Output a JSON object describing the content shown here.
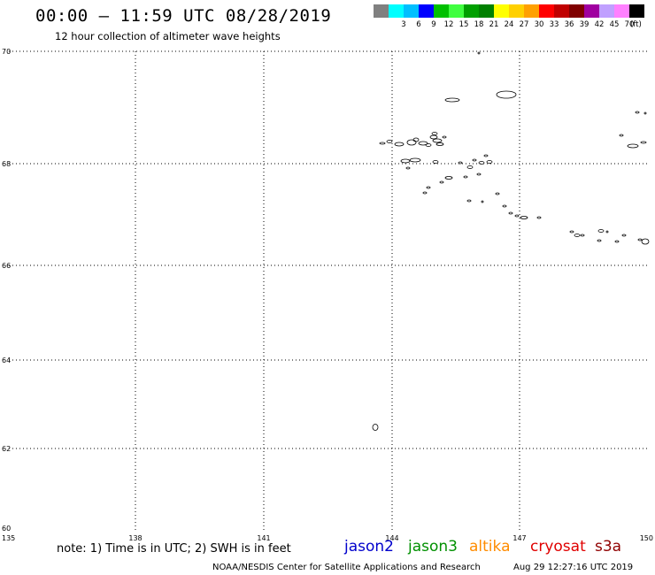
{
  "header": {
    "title": "00:00 – 11:59 UTC 08/28/2019",
    "subtitle": "12 hour collection of altimeter wave heights"
  },
  "scale": {
    "units": "(ft)",
    "swatches": [
      {
        "color": "#808080",
        "label": ""
      },
      {
        "color": "#00ffff",
        "label": "3"
      },
      {
        "color": "#00bfff",
        "label": "6"
      },
      {
        "color": "#0000ff",
        "label": "9"
      },
      {
        "color": "#00c000",
        "label": "12"
      },
      {
        "color": "#40ff40",
        "label": "15"
      },
      {
        "color": "#00a000",
        "label": "18"
      },
      {
        "color": "#008000",
        "label": "21"
      },
      {
        "color": "#ffff00",
        "label": "24"
      },
      {
        "color": "#ffd000",
        "label": "27"
      },
      {
        "color": "#ffa000",
        "label": "30"
      },
      {
        "color": "#ff0000",
        "label": "33"
      },
      {
        "color": "#c00000",
        "label": "36"
      },
      {
        "color": "#800000",
        "label": "39"
      },
      {
        "color": "#a000a0",
        "label": "42"
      },
      {
        "color": "#c0a0ff",
        "label": "45"
      },
      {
        "color": "#ff80ff",
        "label": "70"
      },
      {
        "color": "#000000",
        "label": ""
      }
    ]
  },
  "map": {
    "lat_labels": [
      "70",
      "68",
      "66",
      "64",
      "62",
      "60"
    ],
    "lon_labels": [
      "135",
      "138",
      "141",
      "144",
      "147",
      "150"
    ]
  },
  "footer": {
    "note": "note: 1) Time is in UTC; 2) SWH is in feet",
    "satellites": [
      {
        "name": "jason2",
        "color": "#0000cc"
      },
      {
        "name": "jason3",
        "color": "#009000"
      },
      {
        "name": "altika",
        "color": "#ff8c00"
      },
      {
        "name": "cryosat",
        "color": "#e00000"
      },
      {
        "name": "s3a",
        "color": "#900000"
      }
    ],
    "credit": "NOAA/NESDIS Center for Satellite Applications and Research",
    "timestamp": "Aug 29 12:27:16 UTC 2019"
  }
}
